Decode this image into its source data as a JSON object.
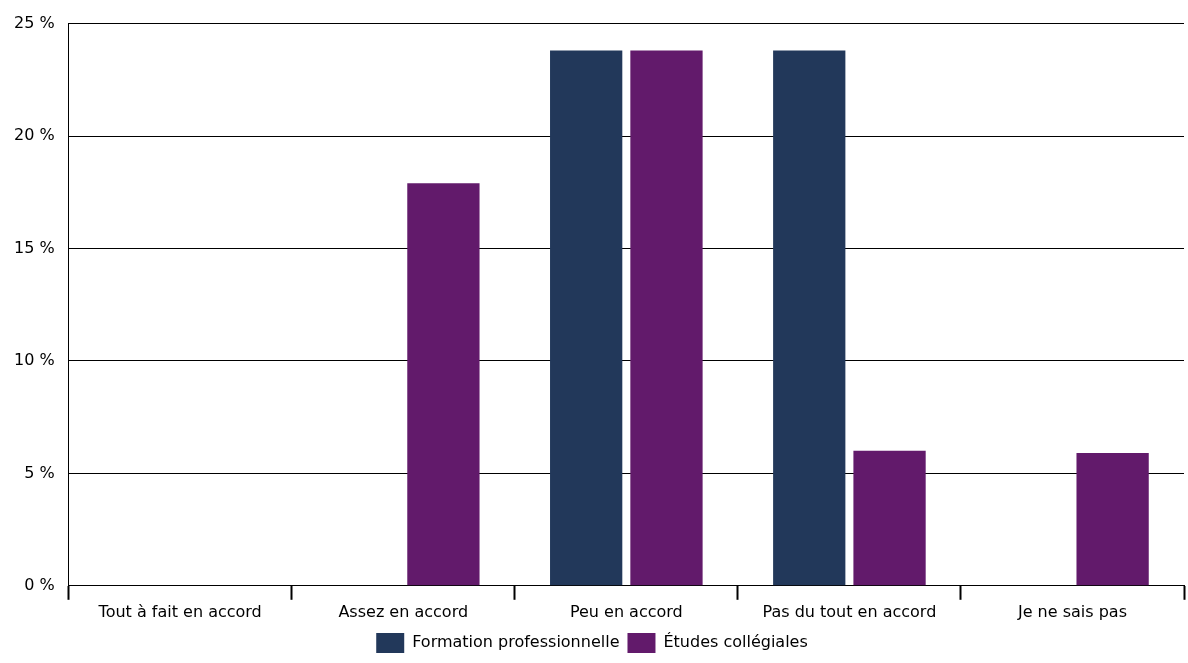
{
  "chart_data": {
    "type": "bar",
    "categories": [
      "Tout à fait en accord",
      "Assez en accord",
      "Peu en accord",
      "Pas du tout en accord",
      "Je ne sais pas"
    ],
    "series": [
      {
        "name": "Formation professionnelle",
        "color": "#22385a",
        "values": [
          0,
          0,
          23.8,
          23.8,
          0
        ]
      },
      {
        "name": "Études collégiales",
        "color": "#621a6b",
        "values": [
          0,
          17.9,
          23.8,
          6.0,
          5.9
        ]
      }
    ],
    "ylim": [
      0,
      25
    ],
    "yticks": [
      {
        "value": 0,
        "label": "0 %"
      },
      {
        "value": 5,
        "label": "5 %"
      },
      {
        "value": 10,
        "label": "10 %"
      },
      {
        "value": 15,
        "label": "15 %"
      },
      {
        "value": 20,
        "label": "20 %"
      },
      {
        "value": 25,
        "label": "25 %"
      }
    ],
    "grid": "y",
    "legend": "bottom"
  }
}
